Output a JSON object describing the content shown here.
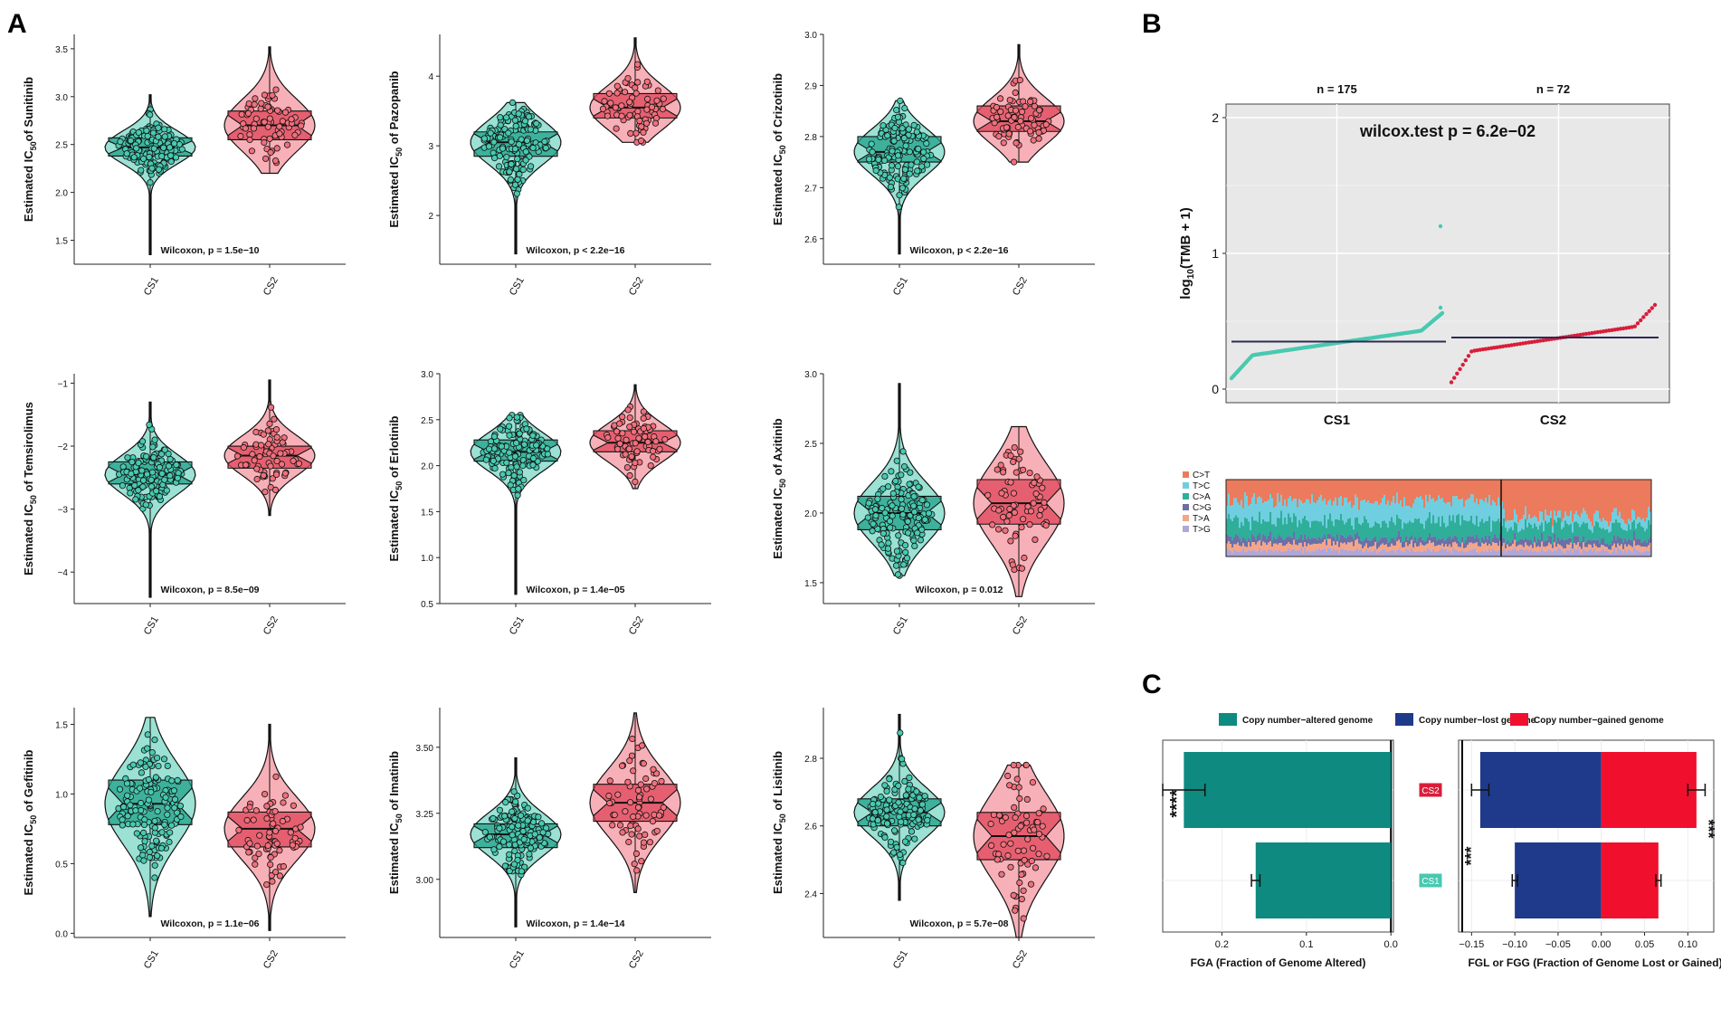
{
  "panel_labels": {
    "A": "A",
    "B": "B",
    "C": "C"
  },
  "colors": {
    "cs1": "#48C9B0",
    "cs1_dark": "#1FA08A",
    "cs2": "#F0707C",
    "cs2_dark": "#E04458"
  },
  "chart_data": [
    {
      "type": "violin-box",
      "panel": "A",
      "drug": "Sunitinib",
      "ylabel_prefix": "Estimated IC",
      "ylabel_sub": "50",
      "ylabel_suffix": "of Sunitinib",
      "categories": [
        "CS1",
        "CS2"
      ],
      "ylim": [
        1.25,
        3.65
      ],
      "yticks": [
        1.5,
        2.0,
        2.5,
        3.0,
        3.5
      ],
      "ytick_labels": [
        "1.5",
        "2.0",
        "2.5",
        "3.0",
        "3.5"
      ],
      "groups": [
        {
          "name": "CS1",
          "min": 1.35,
          "q1": 2.38,
          "median": 2.47,
          "q3": 2.57,
          "max": 3.02
        },
        {
          "name": "CS2",
          "min": 2.2,
          "q1": 2.55,
          "median": 2.7,
          "q3": 2.85,
          "max": 3.52
        }
      ],
      "annotation": "Wilcoxon, p = 1.5e−10"
    },
    {
      "type": "violin-box",
      "panel": "A",
      "drug": "Pazopanib",
      "ylabel_prefix": "Estimated IC",
      "ylabel_sub": "50",
      "ylabel_suffix": " of Pazopanib",
      "categories": [
        "CS1",
        "CS2"
      ],
      "ylim": [
        1.3,
        4.6
      ],
      "yticks": [
        2,
        3,
        4
      ],
      "ytick_labels": [
        "2",
        "3",
        "4"
      ],
      "groups": [
        {
          "name": "CS1",
          "min": 1.45,
          "q1": 2.85,
          "median": 3.05,
          "q3": 3.2,
          "max": 3.62
        },
        {
          "name": "CS2",
          "min": 3.05,
          "q1": 3.4,
          "median": 3.55,
          "q3": 3.75,
          "max": 4.55
        }
      ],
      "annotation": "Wilcoxon, p < 2.2e−16"
    },
    {
      "type": "violin-box",
      "panel": "A",
      "drug": "Crizotinib",
      "ylabel_prefix": "Estimated IC",
      "ylabel_sub": "50",
      "ylabel_suffix": " of Crizotinib",
      "categories": [
        "CS1",
        "CS2"
      ],
      "ylim": [
        2.55,
        3.0
      ],
      "yticks": [
        2.6,
        2.7,
        2.8,
        2.9,
        3.0
      ],
      "ytick_labels": [
        "2.6",
        "2.7",
        "2.8",
        "2.9",
        "3.0"
      ],
      "groups": [
        {
          "name": "CS1",
          "min": 2.57,
          "q1": 2.75,
          "median": 2.77,
          "q3": 2.8,
          "max": 2.87
        },
        {
          "name": "CS2",
          "min": 2.75,
          "q1": 2.81,
          "median": 2.83,
          "q3": 2.86,
          "max": 2.98
        }
      ],
      "annotation": "Wilcoxon, p < 2.2e−16"
    },
    {
      "type": "violin-box",
      "panel": "A",
      "drug": "Temsirolimus",
      "ylabel_prefix": "Estimated IC",
      "ylabel_sub": "50",
      "ylabel_suffix": " of Temsirolimus",
      "categories": [
        "CS1",
        "CS2"
      ],
      "ylim": [
        -4.5,
        -0.85
      ],
      "yticks": [
        -4,
        -3,
        -2,
        -1
      ],
      "ytick_labels": [
        "−4",
        "−3",
        "−2",
        "−1"
      ],
      "groups": [
        {
          "name": "CS1",
          "min": -4.4,
          "q1": -2.6,
          "median": -2.45,
          "q3": -2.25,
          "max": -1.3
        },
        {
          "name": "CS2",
          "min": -3.1,
          "q1": -2.35,
          "median": -2.15,
          "q3": -2.0,
          "max": -0.95
        }
      ],
      "annotation": "Wilcoxon, p = 8.5e−09"
    },
    {
      "type": "violin-box",
      "panel": "A",
      "drug": "Erlotinib",
      "ylabel_prefix": "Estimated IC",
      "ylabel_sub": "50",
      "ylabel_suffix": " of Erlotinib",
      "categories": [
        "CS1",
        "CS2"
      ],
      "ylim": [
        0.5,
        3.0
      ],
      "yticks": [
        0.5,
        1.0,
        1.5,
        2.0,
        2.5,
        3.0
      ],
      "ytick_labels": [
        "0.5",
        "1.0",
        "1.5",
        "2.0",
        "2.5",
        "3.0"
      ],
      "groups": [
        {
          "name": "CS1",
          "min": 0.6,
          "q1": 2.05,
          "median": 2.15,
          "q3": 2.28,
          "max": 2.55
        },
        {
          "name": "CS2",
          "min": 1.75,
          "q1": 2.15,
          "median": 2.25,
          "q3": 2.38,
          "max": 2.88
        }
      ],
      "annotation": "Wilcoxon, p = 1.4e−05"
    },
    {
      "type": "violin-box",
      "panel": "A",
      "drug": "Axitinib",
      "ylabel_prefix": "Estimated IC",
      "ylabel_sub": "50",
      "ylabel_suffix": " of Axitinib",
      "categories": [
        "CS1",
        "CS2"
      ],
      "ylim": [
        1.35,
        3.0
      ],
      "yticks": [
        1.5,
        2.0,
        2.5,
        3.0
      ],
      "ytick_labels": [
        "1.5",
        "2.0",
        "2.5",
        "3.0"
      ],
      "groups": [
        {
          "name": "CS1",
          "min": 1.55,
          "q1": 1.88,
          "median": 2.0,
          "q3": 2.12,
          "max": 2.93
        },
        {
          "name": "CS2",
          "min": 1.4,
          "q1": 1.92,
          "median": 2.07,
          "q3": 2.24,
          "max": 2.62
        }
      ],
      "annotation": "Wilcoxon, p = 0.012"
    },
    {
      "type": "violin-box",
      "panel": "A",
      "drug": "Gefitinib",
      "ylabel_prefix": "Estimated IC",
      "ylabel_sub": "50",
      "ylabel_suffix": " of Gefitinib",
      "categories": [
        "CS1",
        "CS2"
      ],
      "ylim": [
        -0.03,
        1.62
      ],
      "yticks": [
        0.0,
        0.5,
        1.0,
        1.5
      ],
      "ytick_labels": [
        "0.0",
        "0.5",
        "1.0",
        "1.5"
      ],
      "groups": [
        {
          "name": "CS1",
          "min": 0.12,
          "q1": 0.78,
          "median": 0.93,
          "q3": 1.1,
          "max": 1.55
        },
        {
          "name": "CS2",
          "min": 0.02,
          "q1": 0.62,
          "median": 0.75,
          "q3": 0.87,
          "max": 1.5
        }
      ],
      "annotation": "Wilcoxon, p = 1.1e−06"
    },
    {
      "type": "violin-box",
      "panel": "A",
      "drug": "Imatinib",
      "ylabel_prefix": "Estimated IC",
      "ylabel_sub": "50",
      "ylabel_suffix": " of Imatinib",
      "categories": [
        "CS1",
        "CS2"
      ],
      "ylim": [
        2.78,
        3.65
      ],
      "yticks": [
        3.0,
        3.25,
        3.5
      ],
      "ytick_labels": [
        "3.00",
        "3.25",
        "3.50"
      ],
      "groups": [
        {
          "name": "CS1",
          "min": 2.82,
          "q1": 3.12,
          "median": 3.17,
          "q3": 3.21,
          "max": 3.46
        },
        {
          "name": "CS2",
          "min": 2.95,
          "q1": 3.22,
          "median": 3.29,
          "q3": 3.36,
          "max": 3.63
        }
      ],
      "annotation": "Wilcoxon, p = 1.4e−14"
    },
    {
      "type": "violin-box",
      "panel": "A",
      "drug": "Lisitinib",
      "ylabel_prefix": "Estimated IC",
      "ylabel_sub": "50",
      "ylabel_suffix": " of Lisitinib",
      "categories": [
        "CS1",
        "CS2"
      ],
      "ylim": [
        2.27,
        2.95
      ],
      "yticks": [
        2.4,
        2.6,
        2.8
      ],
      "ytick_labels": [
        "2.4",
        "2.6",
        "2.8"
      ],
      "groups": [
        {
          "name": "CS1",
          "min": 2.38,
          "q1": 2.6,
          "median": 2.64,
          "q3": 2.68,
          "max": 2.93
        },
        {
          "name": "CS2",
          "min": 2.27,
          "q1": 2.5,
          "median": 2.57,
          "q3": 2.64,
          "max": 2.78
        }
      ],
      "annotation": "Wilcoxon, p = 5.7e−08"
    },
    {
      "type": "scatter",
      "panel": "B",
      "title": "wilcox.test p = 6.2e−02",
      "ylabel_prefix": "log",
      "ylabel_sub": "10",
      "ylabel_suffix": "(TMB + 1)",
      "ylim": [
        -0.1,
        2.1
      ],
      "yticks": [
        0,
        1,
        2
      ],
      "ytick_labels": [
        "0",
        "1",
        "2"
      ],
      "categories": [
        "CS1",
        "CS2"
      ],
      "counts": [
        "n = 175",
        "n = 72"
      ],
      "series": [
        {
          "name": "CS1",
          "n": 175,
          "start": 0.08,
          "end": 0.56,
          "median": 0.35,
          "outliers": [
            0.6,
            1.2
          ]
        },
        {
          "name": "CS2",
          "n": 72,
          "start": 0.05,
          "end": 0.62,
          "median": 0.38,
          "outliers": []
        }
      ]
    },
    {
      "type": "stacked-bar",
      "panel": "B",
      "legend": [
        "C>T",
        "T>C",
        "C>A",
        "C>G",
        "T>A",
        "T>G"
      ],
      "legend_colors": [
        "#EC7A5C",
        "#6FCFE0",
        "#2FAE9A",
        "#6B6FA8",
        "#F4A58A",
        "#B0A6D8"
      ]
    },
    {
      "type": "bar",
      "panel": "C",
      "xlabel": "FGA (Fraction of Genome Altered)",
      "categories": [
        "CS2",
        "CS1"
      ],
      "values": [
        0.245,
        0.16
      ],
      "errors": [
        0.025,
        0.005
      ],
      "xlim": [
        0.27,
        -0.003
      ],
      "xticks": [
        0.2,
        0.1,
        0.0
      ],
      "xtick_labels": [
        "0.2",
        "0.1",
        "0.0"
      ],
      "signif": "****"
    },
    {
      "type": "bar",
      "panel": "C",
      "xlabel": "FGL or FGG (Fraction of Genome Lost or Gained)",
      "categories": [
        "CS2",
        "CS1"
      ],
      "series": [
        {
          "name": "Copy number−lost genome",
          "values": [
            -0.14,
            -0.1
          ],
          "errors": [
            0.01,
            0.003
          ]
        },
        {
          "name": "Copy number−gained genome",
          "values": [
            0.11,
            0.066
          ],
          "errors": [
            0.01,
            0.003
          ]
        }
      ],
      "xlim": [
        -0.165,
        0.13
      ],
      "xticks": [
        -0.15,
        -0.1,
        -0.05,
        0.0,
        0.05,
        0.1
      ],
      "xtick_labels": [
        "−0.15",
        "−0.10",
        "−0.05",
        "0.00",
        "0.05",
        "0.10"
      ],
      "signif_left": "***",
      "signif_right": "***"
    },
    {
      "type": "legend",
      "panel": "C",
      "entries": [
        "Copy number−altered genome",
        "Copy number−lost genome",
        "Copy number−gained genome"
      ],
      "colors": [
        "#0E8A80",
        "#1F3A8A",
        "#F0102E"
      ]
    }
  ]
}
